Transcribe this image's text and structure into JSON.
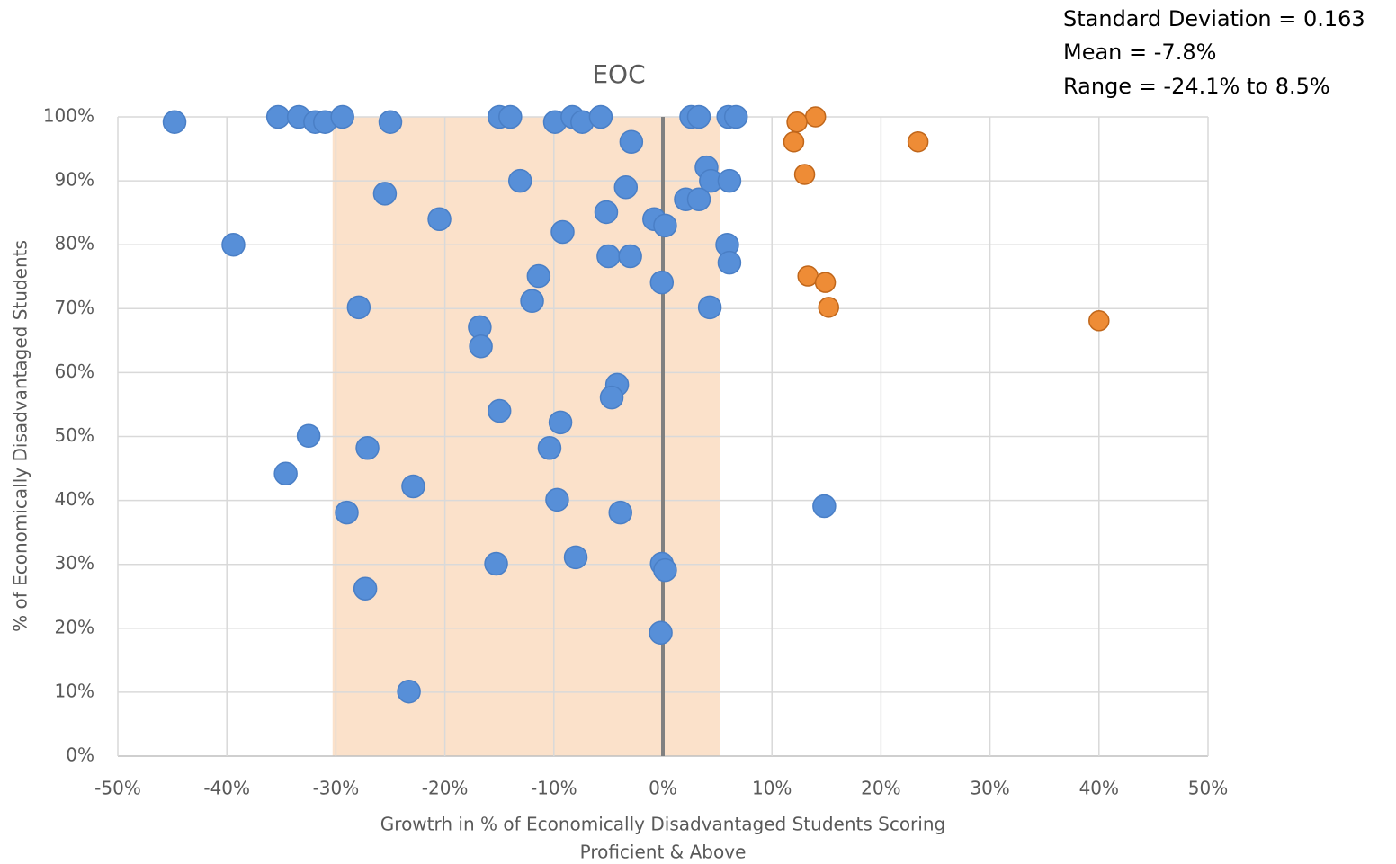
{
  "chart_data": {
    "type": "scatter",
    "title": "EOC",
    "annotations": [
      "Standard Deviation = 0.163",
      "Mean = -7.8%",
      "Range = -24.1% to 8.5%"
    ],
    "xlabel": [
      "Growtrh in % of Economically Disadvantaged Students Scoring",
      "Proficient & Above"
    ],
    "ylabel": "% of Economically Disadvantaged Students",
    "xlim": [
      -50,
      50
    ],
    "ylim": [
      0,
      100
    ],
    "xticks": [
      {
        "value": -50,
        "label": "-50%"
      },
      {
        "value": -40,
        "label": "-40%"
      },
      {
        "value": -30,
        "label": "-30%"
      },
      {
        "value": -20,
        "label": "-20%"
      },
      {
        "value": -10,
        "label": "-10%"
      },
      {
        "value": 0,
        "label": "0%"
      },
      {
        "value": 10,
        "label": "10%"
      },
      {
        "value": 20,
        "label": "20%"
      },
      {
        "value": 30,
        "label": "30%"
      },
      {
        "value": 40,
        "label": "40%"
      },
      {
        "value": 50,
        "label": "50%"
      }
    ],
    "yticks": [
      {
        "value": 0,
        "label": "0%"
      },
      {
        "value": 10,
        "label": "10%"
      },
      {
        "value": 20,
        "label": "20%"
      },
      {
        "value": 30,
        "label": "30%"
      },
      {
        "value": 40,
        "label": "40%"
      },
      {
        "value": 50,
        "label": "50%"
      },
      {
        "value": 60,
        "label": "60%"
      },
      {
        "value": 70,
        "label": "70%"
      },
      {
        "value": 80,
        "label": "80%"
      },
      {
        "value": 90,
        "label": "90%"
      },
      {
        "value": 100,
        "label": "100%"
      }
    ],
    "grid": true,
    "band": {
      "x": [
        -30.3,
        5.2
      ],
      "color": "#fbe1ca"
    },
    "vline": {
      "x": 0,
      "color": "#808080"
    },
    "series": [
      {
        "color": "#578fd8",
        "x": [
          -44.8,
          -35.3,
          -33.4,
          -31.9,
          -31.0,
          -29.4,
          -25.0,
          -15.0,
          -14.0,
          -9.9,
          -8.3,
          -7.4,
          -5.7,
          -2.9,
          2.6,
          3.3,
          6.0,
          6.7,
          4.0,
          4.4,
          6.1,
          -13.1,
          -25.5,
          -3.4,
          2.1,
          3.3,
          -20.5,
          -5.2,
          -0.8,
          0.2,
          -9.2,
          -39.4,
          5.9,
          6.1,
          -5.0,
          -3.0,
          -11.4,
          -0.1,
          -12.0,
          -27.9,
          4.3,
          -16.8,
          -16.7,
          -4.2,
          -4.7,
          -15.0,
          -9.4,
          -32.5,
          -10.4,
          -27.1,
          -34.6,
          -22.9,
          -9.7,
          14.8,
          -29.0,
          -3.9,
          -15.3,
          -8.0,
          -0.1,
          0.2,
          -27.3,
          -0.2,
          -23.3
        ],
        "values": [
          99.2,
          100,
          100,
          99.2,
          99.2,
          100,
          99.2,
          100,
          100,
          99.2,
          100,
          99.2,
          100,
          96.1,
          100,
          100,
          100,
          100,
          92.1,
          90,
          90,
          90,
          88,
          89,
          87.1,
          87.1,
          84,
          85.1,
          84,
          83,
          82,
          80,
          80,
          77.2,
          78.2,
          78.2,
          75.1,
          74.1,
          71.2,
          70.2,
          70.2,
          67.1,
          64.1,
          58.1,
          56.1,
          54,
          52.2,
          50.1,
          48.2,
          48.2,
          44.2,
          42.2,
          40.1,
          39.1,
          38.1,
          38.1,
          30.1,
          31.1,
          30.1,
          29.1,
          26.2,
          19.3,
          10.1
        ]
      },
      {
        "color": "#ee8c36",
        "x": [
          14.0,
          12.3,
          12.0,
          23.4,
          13.0,
          13.3,
          14.9,
          15.2,
          40.0
        ],
        "values": [
          100,
          99.2,
          96.1,
          96.1,
          91,
          75.1,
          74.1,
          70.2,
          68.1
        ]
      }
    ]
  }
}
